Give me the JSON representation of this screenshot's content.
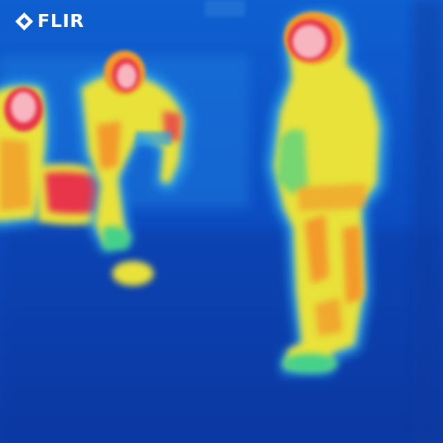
{
  "brand": {
    "name": "FLIR",
    "icon": "flir-diamond-icon"
  },
  "palette": {
    "background": "#0a3fb8",
    "cold": "#1a56cc",
    "cool": "#2aa0e6",
    "mild": "#44d18a",
    "warm": "#e8e23a",
    "hot": "#f39a2a",
    "hotter": "#e8344a",
    "hottest": "#f7b5c0"
  }
}
